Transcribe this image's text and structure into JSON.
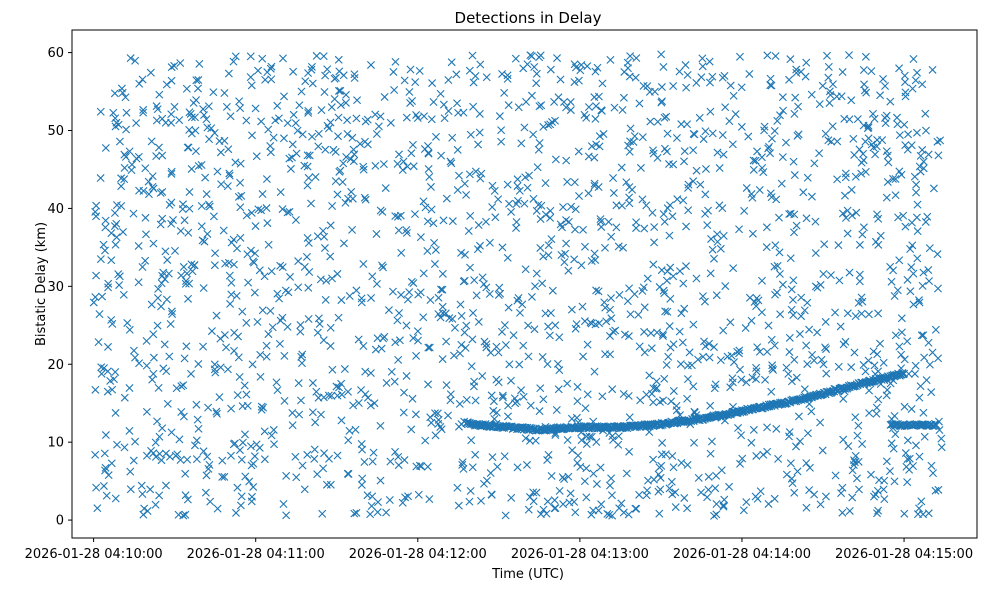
{
  "chart_data": {
    "type": "scatter",
    "title": "Detections in Delay",
    "xlabel": "Time (UTC)",
    "ylabel": "Bistatic Delay (km)",
    "marker": "x",
    "series_color": "#1f77b4",
    "grid": false,
    "legend": "none",
    "xlim": [
      "2026-01-28 04:09:52",
      "2026-01-28 04:15:27"
    ],
    "ylim": [
      -2.3,
      62.9
    ],
    "xticks": [
      "2026-01-28 04:10:00",
      "2026-01-28 04:11:00",
      "2026-01-28 04:12:00",
      "2026-01-28 04:13:00",
      "2026-01-28 04:14:00",
      "2026-01-28 04:15:00"
    ],
    "yticks": [
      0,
      10,
      20,
      30,
      40,
      50,
      60
    ],
    "track_series": {
      "description_points": [
        {
          "t": "2026-01-28 04:12:18",
          "y": 12.4
        },
        {
          "t": "2026-01-28 04:12:30",
          "y": 12.0
        },
        {
          "t": "2026-01-28 04:12:45",
          "y": 11.6
        },
        {
          "t": "2026-01-28 04:12:58",
          "y": 11.9
        },
        {
          "t": "2026-01-28 04:13:15",
          "y": 11.9
        },
        {
          "t": "2026-01-28 04:13:30",
          "y": 12.3
        },
        {
          "t": "2026-01-28 04:13:45",
          "y": 13.0
        },
        {
          "t": "2026-01-28 04:14:00",
          "y": 14.0
        },
        {
          "t": "2026-01-28 04:14:15",
          "y": 15.0
        },
        {
          "t": "2026-01-28 04:14:30",
          "y": 16.2
        },
        {
          "t": "2026-01-28 04:14:45",
          "y": 17.6
        },
        {
          "t": "2026-01-28 04:15:00",
          "y": 18.8
        }
      ],
      "second_track": [
        {
          "t": "2026-01-28 04:14:55",
          "y": 12.2
        },
        {
          "t": "2026-01-28 04:15:12",
          "y": 12.2
        }
      ]
    },
    "clutter": {
      "x_range": [
        "2026-01-28 04:10:00",
        "2026-01-28 04:15:14"
      ],
      "y_range": [
        0.5,
        59.8
      ],
      "count": 2000
    }
  }
}
